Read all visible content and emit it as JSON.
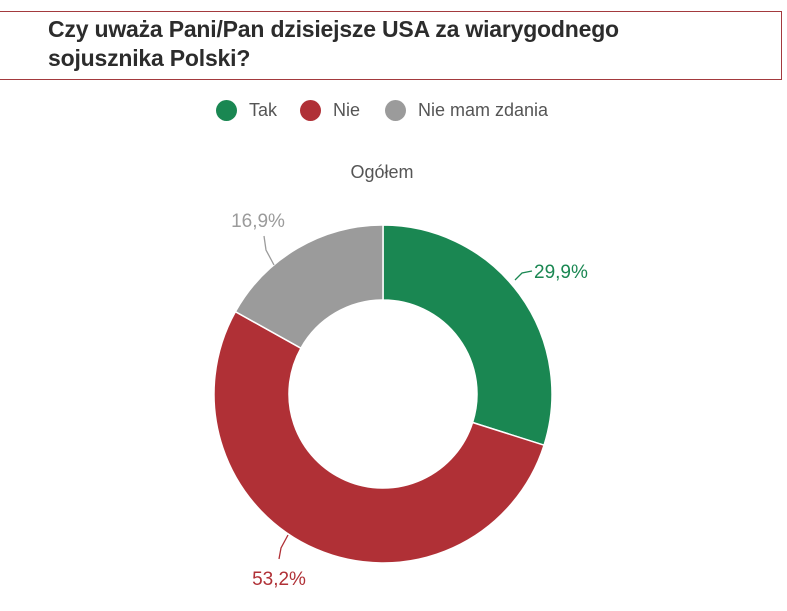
{
  "header": {
    "title": "Czy uważa Pani/Pan dzisiejsze USA za wiarygodnego sojusznika Polski?"
  },
  "colors": {
    "accent_rule": "#a33a3e"
  },
  "legend": [
    {
      "label": "Tak",
      "color": "#1a8752"
    },
    {
      "label": "Nie",
      "color": "#b03036"
    },
    {
      "label": "Nie mam zdania",
      "color": "#9b9b9b"
    }
  ],
  "chart_data": {
    "type": "pie",
    "subtitle": "Ogółem",
    "donut": true,
    "start_angle": "top",
    "direction": "clockwise",
    "series": [
      {
        "name": "Tak",
        "value": 29.9,
        "label": "29,9%",
        "color": "#1a8752"
      },
      {
        "name": "Nie",
        "value": 53.2,
        "label": "53,2%",
        "color": "#b03036"
      },
      {
        "name": "Nie mam zdania",
        "value": 16.9,
        "label": "16,9%",
        "color": "#9b9b9b"
      }
    ]
  }
}
